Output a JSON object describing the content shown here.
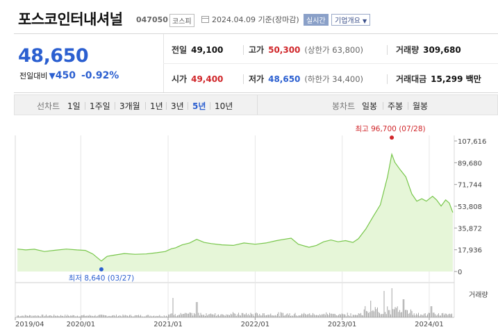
{
  "header": {
    "stock_name": "포스코인터내셔널",
    "stock_code": "047050",
    "market": "코스피",
    "date_label": "2024.04.09 기준(장마감)",
    "realtime_label": "실시간",
    "company_info_label": "기업개요"
  },
  "quote": {
    "price": "48,650",
    "change_label": "전일대비",
    "change_value": "450",
    "change_percent": "-0.92%",
    "prev_close_label": "전일",
    "prev_close": "49,100",
    "high_label": "고가",
    "high": "50,300",
    "upper_limit": "(상한가 63,800)",
    "volume_label": "거래량",
    "volume": "309,680",
    "open_label": "시가",
    "open": "49,400",
    "low_label": "저가",
    "low": "48,650",
    "lower_limit": "(하한가 34,400)",
    "amount_label": "거래대금",
    "amount": "15,299 백만"
  },
  "toolbar": {
    "line_chart_label": "선차트",
    "periods": [
      "1일",
      "1주일",
      "3개월",
      "1년",
      "3년",
      "5년",
      "10년"
    ],
    "selected_period": "5년",
    "candle_label": "봉차트",
    "candles": [
      "일봉",
      "주봉",
      "월봉"
    ]
  },
  "colors": {
    "up": "#d0262a",
    "down": "#2b5fd0",
    "line": "#77c64a",
    "fill": "#e6f6d8"
  },
  "chart_data": {
    "type": "area",
    "x_ticks": [
      "2019/04",
      "2020/01",
      "2021/01",
      "2022/01",
      "2023/01",
      "2024/01"
    ],
    "y_ticks": [
      "107,616",
      "89,680",
      "71,744",
      "53,808",
      "35,872",
      "17,936",
      "0"
    ],
    "ylim": [
      0,
      107616
    ],
    "volume_label": "거래량",
    "max_label": "최고 96,700 (07/28)",
    "min_label": "최저 8,640 (03/27)",
    "max_point": {
      "date": "2023/07/28",
      "value": 96700
    },
    "min_point": {
      "date": "2020/03/27",
      "value": 8640
    },
    "series": [
      {
        "values": [
          [
            "2019/04/10",
            18500
          ],
          [
            "2019/05/15",
            17800
          ],
          [
            "2019/06/20",
            18400
          ],
          [
            "2019/08/01",
            16500
          ],
          [
            "2019/09/15",
            17500
          ],
          [
            "2019/11/01",
            18500
          ],
          [
            "2019/12/15",
            17800
          ],
          [
            "2020/01/20",
            17400
          ],
          [
            "2020/02/20",
            14500
          ],
          [
            "2020/03/27",
            8640
          ],
          [
            "2020/04/20",
            12500
          ],
          [
            "2020/05/20",
            13500
          ],
          [
            "2020/07/01",
            14800
          ],
          [
            "2020/08/15",
            14200
          ],
          [
            "2020/10/01",
            14500
          ],
          [
            "2020/11/15",
            15500
          ],
          [
            "2020/12/20",
            16500
          ],
          [
            "2021/01/15",
            18800
          ],
          [
            "2021/02/01",
            19500
          ],
          [
            "2021/03/01",
            22000
          ],
          [
            "2021/04/01",
            23500
          ],
          [
            "2021/05/01",
            26500
          ],
          [
            "2021/06/01",
            24000
          ],
          [
            "2021/07/01",
            23000
          ],
          [
            "2021/08/15",
            22000
          ],
          [
            "2021/10/01",
            21500
          ],
          [
            "2021/11/15",
            23500
          ],
          [
            "2022/01/01",
            22500
          ],
          [
            "2022/02/15",
            23500
          ],
          [
            "2022/04/01",
            25500
          ],
          [
            "2022/05/01",
            26500
          ],
          [
            "2022/06/01",
            27500
          ],
          [
            "2022/07/01",
            22500
          ],
          [
            "2022/08/15",
            20000
          ],
          [
            "2022/09/15",
            21500
          ],
          [
            "2022/10/15",
            24500
          ],
          [
            "2022/11/15",
            26000
          ],
          [
            "2022/12/15",
            24500
          ],
          [
            "2023/01/15",
            25500
          ],
          [
            "2023/02/15",
            24000
          ],
          [
            "2023/03/10",
            27000
          ],
          [
            "2023/04/10",
            35000
          ],
          [
            "2023/05/10",
            45000
          ],
          [
            "2023/06/10",
            55000
          ],
          [
            "2023/07/10",
            78000
          ],
          [
            "2023/07/28",
            96700
          ],
          [
            "2023/08/10",
            90000
          ],
          [
            "2023/09/01",
            84000
          ],
          [
            "2023/09/25",
            78000
          ],
          [
            "2023/10/20",
            64000
          ],
          [
            "2023/11/10",
            58000
          ],
          [
            "2023/12/01",
            60000
          ],
          [
            "2023/12/20",
            58000
          ],
          [
            "2024/01/15",
            62000
          ],
          [
            "2024/02/01",
            59000
          ],
          [
            "2024/02/20",
            54000
          ],
          [
            "2024/03/10",
            59000
          ],
          [
            "2024/03/25",
            56500
          ],
          [
            "2024/04/09",
            48650
          ]
        ]
      }
    ]
  }
}
